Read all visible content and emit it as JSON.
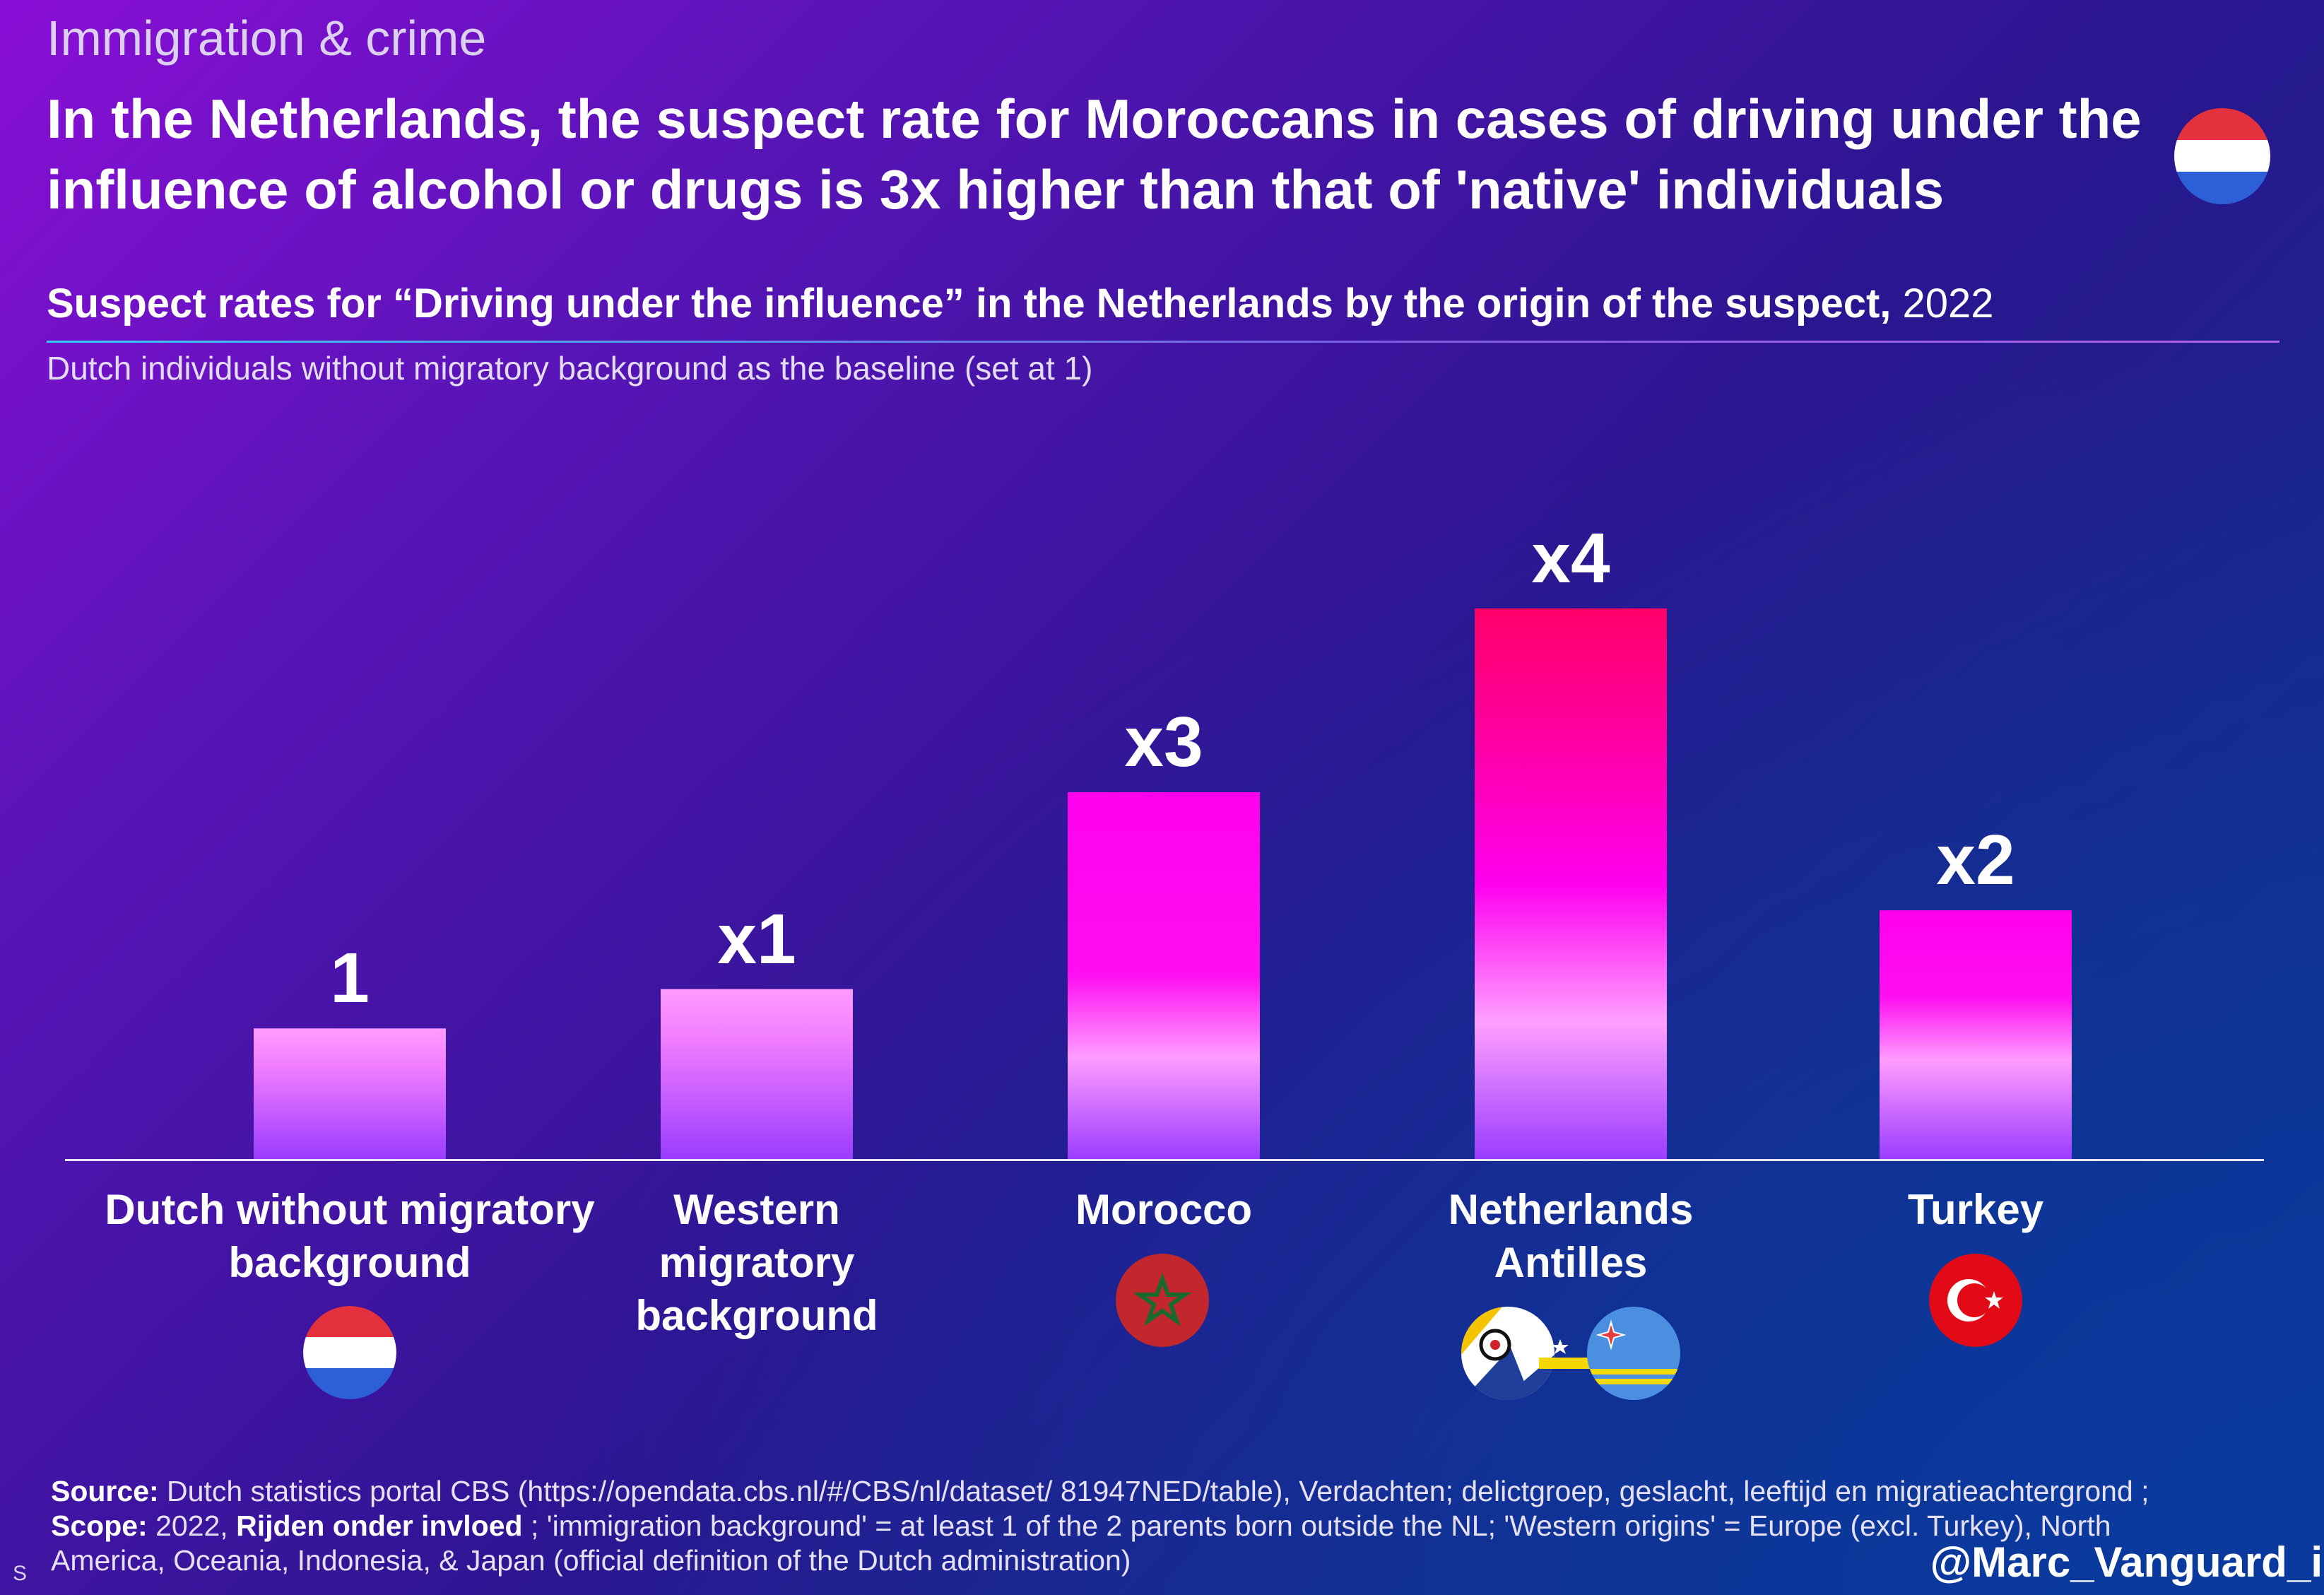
{
  "header": {
    "kicker": "Immigration & crime",
    "title": "In the Netherlands, the suspect rate for Moroccans in cases of driving under the influence of alcohol or drugs is 3x higher than that of 'native' individuals",
    "flag_icon": "netherlands-flag-icon"
  },
  "chart_data": {
    "type": "bar",
    "title": "Suspect rates for “Driving under the influence” in the Netherlands by the origin of the suspect,",
    "title_year": "2022",
    "subtitle": "Dutch individuals without migratory background as the baseline (set at 1)",
    "categories": [
      "Dutch without migratory background",
      "Western migratory background",
      "Morocco",
      "Netherlands Antilles",
      "Turkey"
    ],
    "values": [
      1.0,
      1.3,
      2.8,
      4.2,
      1.9
    ],
    "data_labels": [
      "1",
      "x1",
      "x3",
      "x4",
      "x2"
    ],
    "ylim": [
      0,
      4.6
    ],
    "flags": [
      "netherlands-flag-icon",
      "",
      "morocco-flag-icon",
      "bonaire-curacao-aruba-flags-icon",
      "turkey-flag-icon"
    ],
    "colors": {
      "bar_top_low": "#ff9dff",
      "bar_bottom": "#9b3cff",
      "bar_mid": "#ff00ee",
      "bar_top_high": "#ff0068"
    },
    "grid": false,
    "legend": "none"
  },
  "footer": {
    "source_label": "Source:",
    "source_text": " Dutch statistics portal CBS (https://opendata.cbs.nl/#/CBS/nl/dataset/ 81947NED/table), Verdachten; delictgroep, geslacht, leeftijd en migratieachtergrond ; ",
    "scope_label": "Scope:",
    "scope_text": " 2022, ",
    "scope_bold": "Rijden onder invloed",
    "scope_rest": " ; 'immigration background' = at least 1 of the 2 parents born outside the NL; 'Western origins' = Europe (excl. Turkey), North America, Oceania, Indonesia, & Japan (official definition of the Dutch administration)",
    "handle": "@Marc_Vanguard_i",
    "corner_mark": "S"
  }
}
